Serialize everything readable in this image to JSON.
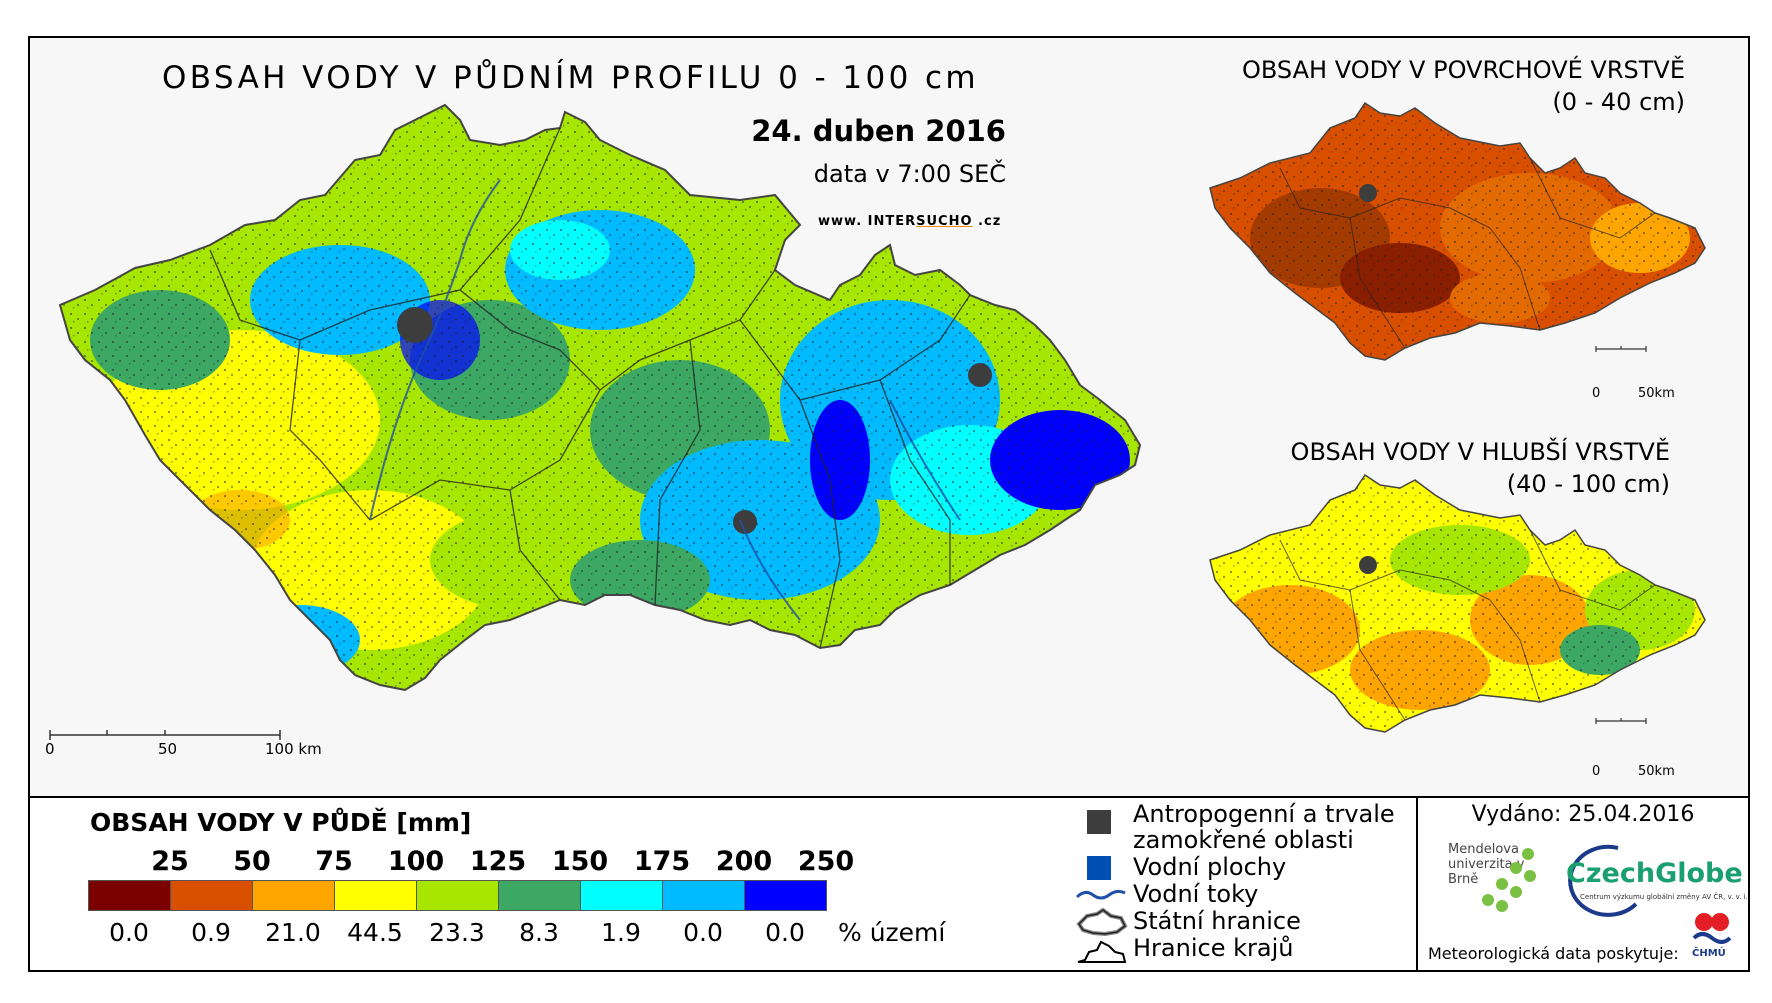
{
  "main": {
    "title": "OBSAH VODY V PŮDNÍM PROFILU 0 - 100 cm",
    "date": "24. duben 2016",
    "time_note": "data v 7:00 SEČ",
    "website_prefix": "www. INTER",
    "website_highlight": "SUCHO",
    "website_suffix": " .cz",
    "scale_labels": [
      "0",
      "50",
      "100 km"
    ]
  },
  "inset_top": {
    "title_line1": "OBSAH VODY V POVRCHOVÉ VRSTVĚ",
    "title_line2": "(0 - 40 cm)",
    "scale_labels": [
      "0",
      "50km"
    ]
  },
  "inset_bottom": {
    "title_line1": "OBSAH VODY V HLUBŠÍ VRSTVĚ",
    "title_line2": "(40 - 100 cm)",
    "scale_labels": [
      "0",
      "50km"
    ]
  },
  "color_legend": {
    "title": "OBSAH VODY V PŮDĚ [mm]",
    "thresholds": [
      "25",
      "50",
      "75",
      "100",
      "125",
      "150",
      "175",
      "200",
      "250"
    ],
    "colors": [
      "#7b0000",
      "#d94f00",
      "#ffa500",
      "#ffff00",
      "#a6e600",
      "#3ca864",
      "#00ffff",
      "#00bbff",
      "#0000ff"
    ],
    "percentages": [
      "0.0",
      "0.9",
      "21.0",
      "44.5",
      "23.3",
      "8.3",
      "1.9",
      "0.0",
      "0.0"
    ],
    "percent_unit": "% území"
  },
  "symbol_legend": [
    {
      "icon": "anthropogenic-square-icon",
      "color": "#3d3d3d",
      "label_line1": "Antropogenní a trvale",
      "label_line2": "zamokřené oblasti"
    },
    {
      "icon": "water-square-icon",
      "color": "#0050b4",
      "label_line1": "Vodní plochy"
    },
    {
      "icon": "river-line-icon",
      "color": "#1f4fa8",
      "label_line1": "Vodní toky"
    },
    {
      "icon": "state-border-icon",
      "color": "#333333",
      "label_line1": "Státní hranice"
    },
    {
      "icon": "region-border-icon",
      "color": "#000000",
      "label_line1": "Hranice krajů"
    }
  ],
  "info": {
    "issued": "Vydáno: 25.04.2016",
    "mendel_logo": "Mendelova univerzita v Brně",
    "czechglobe_logo": "CzechGlobe",
    "czechglobe_sub": "Centrum výzkumu globální změny AV ČR, v. v. i.",
    "met_data": "Meteorologická data poskytuje:",
    "chmu_logo": "ČHMÚ"
  }
}
